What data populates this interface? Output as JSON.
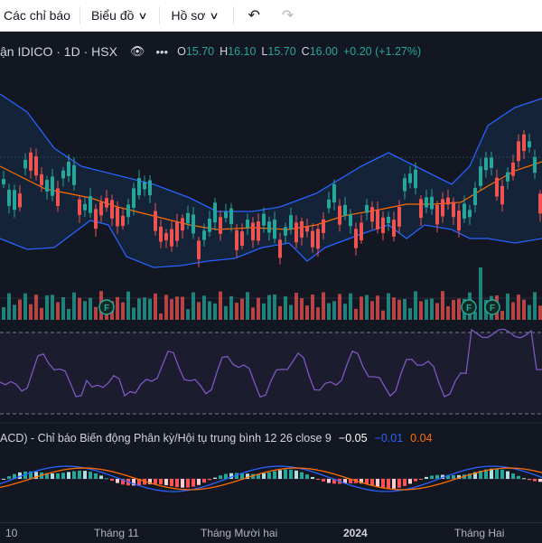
{
  "toolbar": {
    "indicators_label": "Các chỉ báo",
    "chart_type_label": "Biểu đồ",
    "profile_label": "Hồ sơ"
  },
  "legend": {
    "symbol_text": "ận IDICO · 1D · HSX",
    "open": "15.70",
    "high": "16.10",
    "low": "15.70",
    "close": "16.00",
    "change": "+0.20 (+1.27%)"
  },
  "macd": {
    "title": "ACD) - Chỉ báo Biến động Phân kỳ/Hội tụ trung bình 12 26 close 9",
    "histogram": "−0.05",
    "macd": "−0.01",
    "signal": "0.04"
  },
  "events": {
    "marker_label": "F"
  },
  "xaxis": {
    "labels": [
      "10",
      "Tháng 11",
      "Tháng Mười hai",
      "2024",
      "Tháng Hai"
    ]
  },
  "colors": {
    "background": "#131722",
    "up": "#26a69a",
    "down": "#ef5350",
    "bollinger": "#2962ff",
    "ma": "#ff6d00",
    "rsi": "#7e57c2",
    "macd_line": "#2962ff",
    "signal_line": "#ff6d00"
  },
  "chart_data": {
    "type": "candlestick",
    "bollinger_bands": {
      "style": "blue band",
      "basis_color": "#ff6d00"
    },
    "rsi_band": "dashed horizontal band",
    "histogram_colors": [
      "#26a69a",
      "#b2dfdb",
      "#ff5252",
      "#ffcdd2"
    ]
  }
}
